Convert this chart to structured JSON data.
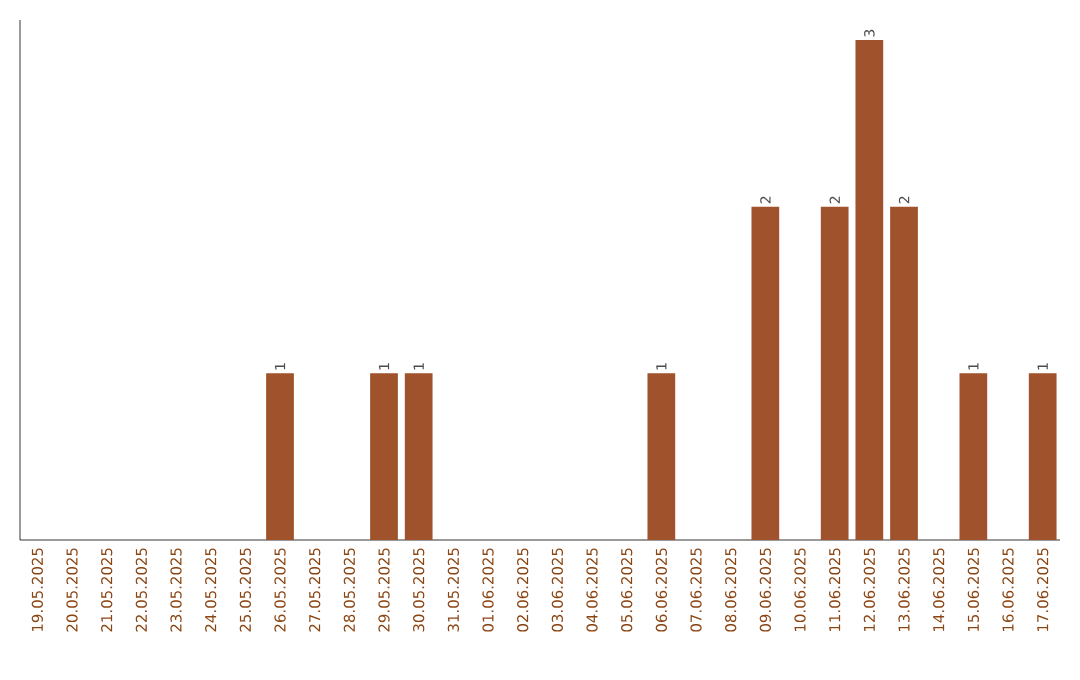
{
  "chart_data": {
    "type": "bar",
    "categories": [
      "19.05.2025",
      "20.05.2025",
      "21.05.2025",
      "22.05.2025",
      "23.05.2025",
      "24.05.2025",
      "25.05.2025",
      "26.05.2025",
      "27.05.2025",
      "28.05.2025",
      "29.05.2025",
      "30.05.2025",
      "31.05.2025",
      "01.06.2025",
      "02.06.2025",
      "03.06.2025",
      "04.06.2025",
      "05.06.2025",
      "06.06.2025",
      "07.06.2025",
      "08.06.2025",
      "09.06.2025",
      "10.06.2025",
      "11.06.2025",
      "12.06.2025",
      "13.06.2025",
      "14.06.2025",
      "15.06.2025",
      "16.06.2025",
      "17.06.2025"
    ],
    "values": [
      0,
      0,
      0,
      0,
      0,
      0,
      0,
      1,
      0,
      0,
      1,
      1,
      0,
      0,
      0,
      0,
      0,
      0,
      1,
      0,
      0,
      2,
      0,
      2,
      3,
      2,
      0,
      1,
      0,
      1
    ],
    "value_labels": [
      null,
      null,
      null,
      null,
      null,
      null,
      null,
      "1",
      null,
      null,
      "1",
      "1",
      null,
      null,
      null,
      null,
      null,
      null,
      "1",
      null,
      null,
      "2",
      null,
      "2",
      "3",
      "2",
      null,
      "1",
      null,
      "1"
    ],
    "color": "#a0522d"
  }
}
